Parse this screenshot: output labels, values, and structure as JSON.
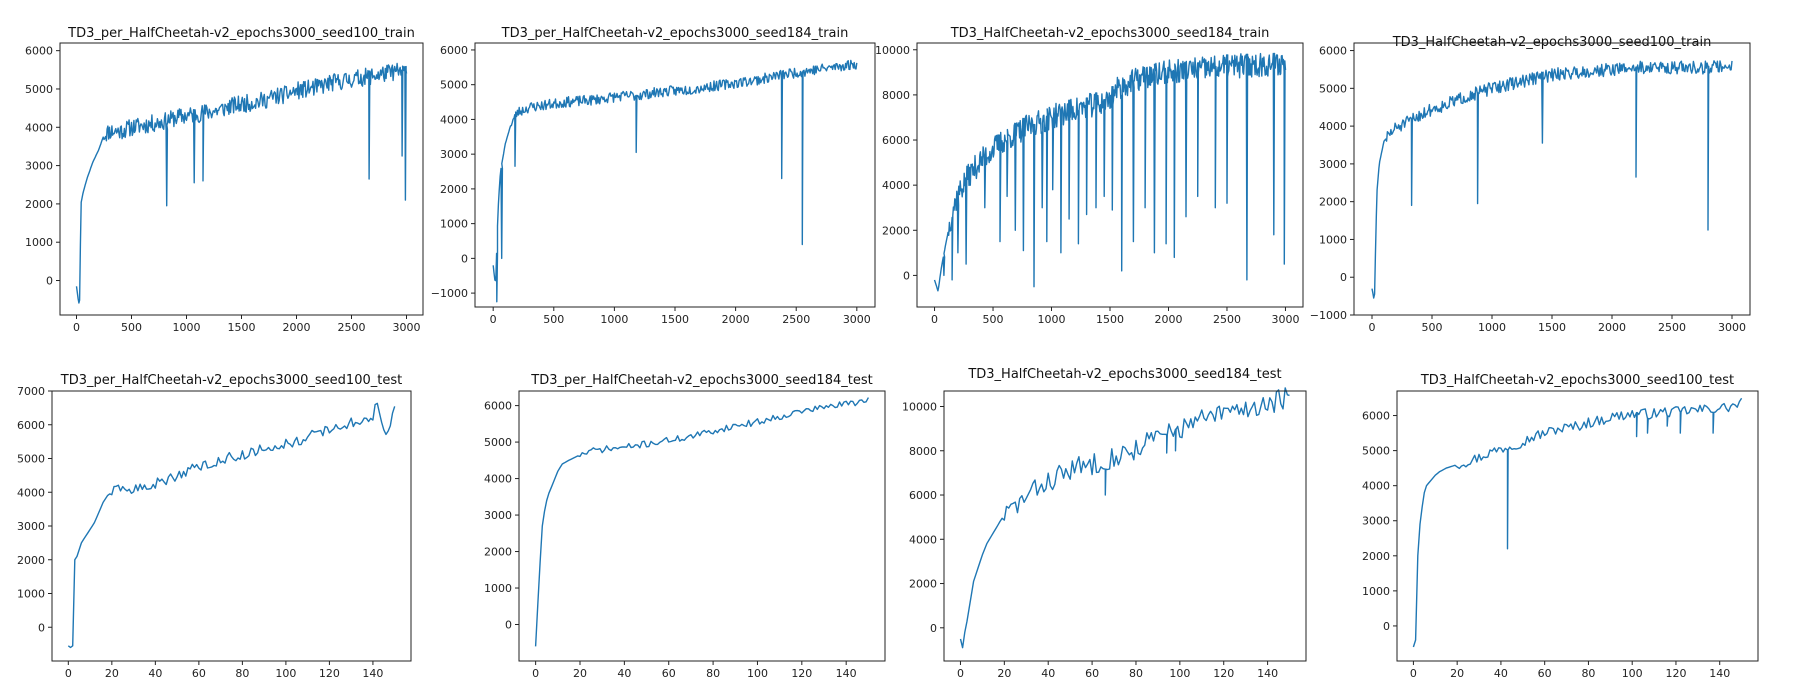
{
  "colors": {
    "series": "#1f77b4",
    "axis": "#222222",
    "background": "#ffffff"
  },
  "chart_data": [
    {
      "type": "line",
      "title": "TD3_per_HalfCheetah-v2_epochs3000_seed100_train",
      "xlim": [
        -150,
        3150
      ],
      "ylim": [
        -900,
        6200
      ],
      "xticks": [
        0,
        500,
        1000,
        1500,
        2000,
        2500,
        3000
      ],
      "yticks": [
        0,
        1000,
        2000,
        3000,
        4000,
        5000,
        6000
      ],
      "curve": {
        "x": [
          0,
          20,
          30,
          40,
          60,
          100,
          150,
          200,
          250,
          300,
          400,
          500,
          600,
          700,
          800,
          900,
          1000,
          1100,
          1200,
          1300,
          1400,
          1500,
          1600,
          1700,
          1800,
          1900,
          2000,
          2100,
          2200,
          2300,
          2400,
          2500,
          2600,
          2700,
          2800,
          2900,
          3000
        ],
        "y": [
          -150,
          -600,
          -500,
          2000,
          2300,
          2700,
          3100,
          3400,
          3800,
          3900,
          3900,
          4000,
          4050,
          4100,
          4150,
          4250,
          4300,
          4350,
          4400,
          4450,
          4550,
          4600,
          4650,
          4700,
          4800,
          4850,
          4950,
          5000,
          5050,
          5150,
          5200,
          5250,
          5300,
          5350,
          5400,
          5450,
          5450
        ]
      },
      "noise": 230,
      "noise_start": 250,
      "seed": 11,
      "points": 420,
      "dips": [
        [
          820,
          1950
        ],
        [
          1070,
          2550
        ],
        [
          1150,
          2600
        ],
        [
          2660,
          2650
        ],
        [
          2960,
          3250
        ],
        [
          2990,
          2100
        ]
      ]
    },
    {
      "type": "line",
      "title": "TD3_per_HalfCheetah-v2_epochs3000_seed184_train",
      "xlim": [
        -150,
        3150
      ],
      "ylim": [
        -1400,
        6200
      ],
      "xticks": [
        0,
        500,
        1000,
        1500,
        2000,
        2500,
        3000
      ],
      "yticks": [
        -1000,
        0,
        1000,
        2000,
        3000,
        4000,
        5000,
        6000
      ],
      "curve": {
        "x": [
          0,
          20,
          40,
          60,
          100,
          150,
          200,
          300,
          400,
          500,
          600,
          800,
          1000,
          1200,
          1400,
          1600,
          1800,
          2000,
          2200,
          2400,
          2600,
          2800,
          3000
        ],
        "y": [
          -200,
          -800,
          1400,
          2500,
          3300,
          3900,
          4200,
          4350,
          4400,
          4450,
          4500,
          4550,
          4650,
          4700,
          4800,
          4850,
          4950,
          5050,
          5150,
          5300,
          5400,
          5500,
          5600
        ]
      },
      "noise": 150,
      "noise_start": 150,
      "seed": 23,
      "points": 420,
      "dips": [
        [
          30,
          -1250
        ],
        [
          70,
          0
        ],
        [
          180,
          2650
        ],
        [
          1180,
          3050
        ],
        [
          2380,
          2300
        ],
        [
          2550,
          400
        ]
      ]
    },
    {
      "type": "line",
      "title": "TD3_HalfCheetah-v2_epochs3000_seed184_train",
      "xlim": [
        -150,
        3150
      ],
      "ylim": [
        -1400,
        10300
      ],
      "xticks": [
        0,
        500,
        1000,
        1500,
        2000,
        2500,
        3000
      ],
      "yticks": [
        0,
        2000,
        4000,
        6000,
        8000,
        10000
      ],
      "curve": {
        "x": [
          0,
          30,
          60,
          100,
          150,
          200,
          300,
          400,
          500,
          600,
          700,
          800,
          900,
          1000,
          1100,
          1200,
          1300,
          1400,
          1500,
          1550,
          1600,
          1700,
          1800,
          1900,
          2000,
          2200,
          2400,
          2600,
          2800,
          3000
        ],
        "y": [
          -200,
          -700,
          400,
          1500,
          2800,
          3600,
          4500,
          5100,
          5600,
          6000,
          6300,
          6600,
          6800,
          7000,
          7200,
          7350,
          7500,
          7600,
          7800,
          8200,
          8400,
          8600,
          8800,
          8900,
          9000,
          9100,
          9200,
          9300,
          9350,
          9400
        ]
      },
      "noise": 550,
      "noise_start": 120,
      "seed": 37,
      "points": 520,
      "dips": [
        [
          80,
          0
        ],
        [
          150,
          -200
        ],
        [
          200,
          1000
        ],
        [
          270,
          500
        ],
        [
          430,
          3000
        ],
        [
          560,
          1500
        ],
        [
          620,
          3500
        ],
        [
          690,
          2000
        ],
        [
          760,
          1100
        ],
        [
          850,
          -500
        ],
        [
          920,
          3000
        ],
        [
          960,
          1500
        ],
        [
          1010,
          3800
        ],
        [
          1080,
          1000
        ],
        [
          1150,
          2500
        ],
        [
          1230,
          1400
        ],
        [
          1300,
          2700
        ],
        [
          1380,
          3000
        ],
        [
          1450,
          3500
        ],
        [
          1520,
          2900
        ],
        [
          1600,
          200
        ],
        [
          1700,
          1500
        ],
        [
          1800,
          3000
        ],
        [
          1880,
          1000
        ],
        [
          1980,
          1400
        ],
        [
          2050,
          800
        ],
        [
          2150,
          2600
        ],
        [
          2250,
          3500
        ],
        [
          2400,
          3000
        ],
        [
          2500,
          3200
        ],
        [
          2670,
          -200
        ],
        [
          2900,
          1800
        ],
        [
          2990,
          500
        ]
      ]
    },
    {
      "type": "line",
      "title": "TD3_HalfCheetah-v2_epochs3000_seed100_train",
      "xlim": [
        -150,
        3150
      ],
      "ylim": [
        -1000,
        6200
      ],
      "xticks": [
        0,
        500,
        1000,
        1500,
        2000,
        2500,
        3000
      ],
      "yticks": [
        -1000,
        0,
        1000,
        2000,
        3000,
        4000,
        5000,
        6000
      ],
      "curve": {
        "x": [
          0,
          20,
          40,
          60,
          100,
          150,
          200,
          300,
          400,
          500,
          600,
          800,
          1000,
          1200,
          1400,
          1600,
          1800,
          2000,
          2200,
          2400,
          2600,
          2800,
          3000
        ],
        "y": [
          -300,
          -650,
          2200,
          3000,
          3600,
          3800,
          3950,
          4100,
          4300,
          4450,
          4550,
          4800,
          5000,
          5150,
          5300,
          5400,
          5450,
          5500,
          5550,
          5550,
          5550,
          5550,
          5600
        ]
      },
      "noise": 170,
      "noise_start": 120,
      "seed": 51,
      "points": 420,
      "dips": [
        [
          330,
          1900
        ],
        [
          880,
          1950
        ],
        [
          1420,
          3550
        ],
        [
          2200,
          2650
        ],
        [
          2800,
          1250
        ]
      ]
    },
    {
      "type": "line",
      "title": "TD3_per_HalfCheetah-v2_epochs3000_seed100_test",
      "xlim": [
        -7.5,
        157.5
      ],
      "ylim": [
        -1000,
        7000
      ],
      "xticks": [
        0,
        20,
        40,
        60,
        80,
        100,
        120,
        140
      ],
      "yticks": [
        0,
        1000,
        2000,
        3000,
        4000,
        5000,
        6000,
        7000
      ],
      "curve": {
        "x": [
          0,
          1,
          2,
          3,
          4,
          5,
          6,
          8,
          10,
          12,
          14,
          16,
          18,
          20,
          25,
          30,
          32,
          35,
          38,
          40,
          45,
          50,
          55,
          60,
          65,
          70,
          75,
          80,
          85,
          90,
          95,
          100,
          105,
          110,
          115,
          120,
          125,
          130,
          135,
          140,
          142,
          144,
          146,
          148,
          150
        ],
        "y": [
          -550,
          -600,
          -550,
          2000,
          2100,
          2300,
          2500,
          2700,
          2900,
          3100,
          3400,
          3700,
          3900,
          4000,
          4100,
          4050,
          4150,
          4100,
          4200,
          4250,
          4350,
          4500,
          4650,
          4750,
          4850,
          4950,
          5050,
          5100,
          5200,
          5300,
          5350,
          5450,
          5500,
          5650,
          5750,
          5850,
          5950,
          6050,
          6150,
          6200,
          6700,
          6000,
          5700,
          6050,
          6500
        ]
      },
      "noise": 150,
      "noise_start": 20,
      "seed": 63,
      "points": 150,
      "dips": []
    },
    {
      "type": "line",
      "title": "TD3_per_HalfCheetah-v2_epochs3000_seed184_test",
      "xlim": [
        -7.5,
        157.5
      ],
      "ylim": [
        -1000,
        6400
      ],
      "xticks": [
        0,
        20,
        40,
        60,
        80,
        100,
        120,
        140
      ],
      "yticks": [
        0,
        1000,
        2000,
        3000,
        4000,
        5000,
        6000
      ],
      "curve": {
        "x": [
          0,
          1,
          2,
          3,
          4,
          5,
          6,
          8,
          10,
          12,
          15,
          20,
          25,
          30,
          40,
          50,
          60,
          70,
          80,
          90,
          100,
          110,
          120,
          130,
          140,
          145,
          150
        ],
        "y": [
          -600,
          600,
          1700,
          2700,
          3100,
          3400,
          3600,
          3900,
          4200,
          4400,
          4500,
          4650,
          4750,
          4800,
          4850,
          4950,
          5050,
          5150,
          5300,
          5450,
          5550,
          5700,
          5850,
          5950,
          6050,
          6100,
          6200
        ]
      },
      "noise": 90,
      "noise_start": 20,
      "seed": 71,
      "points": 150,
      "dips": []
    },
    {
      "type": "line",
      "title": "TD3_HalfCheetah-v2_epochs3000_seed184_test",
      "xlim": [
        -7.5,
        157.5
      ],
      "ylim": [
        -1500,
        10700
      ],
      "xticks": [
        0,
        20,
        40,
        60,
        80,
        100,
        120,
        140
      ],
      "yticks": [
        0,
        2000,
        4000,
        6000,
        8000,
        10000
      ],
      "curve": {
        "x": [
          0,
          1,
          2,
          3,
          4,
          5,
          6,
          8,
          10,
          12,
          15,
          18,
          20,
          25,
          30,
          35,
          40,
          45,
          50,
          55,
          60,
          65,
          70,
          75,
          80,
          85,
          90,
          95,
          100,
          105,
          110,
          115,
          120,
          125,
          130,
          135,
          140,
          145,
          150
        ],
        "y": [
          -500,
          -900,
          -200,
          300,
          900,
          1500,
          2100,
          2700,
          3300,
          3800,
          4300,
          4800,
          5100,
          5500,
          5900,
          6300,
          6600,
          6900,
          7100,
          7300,
          7400,
          7600,
          7700,
          7900,
          8100,
          8400,
          8600,
          8800,
          9000,
          9200,
          9400,
          9500,
          9700,
          9800,
          9900,
          10000,
          10100,
          10300,
          10450
        ]
      },
      "noise": 500,
      "noise_start": 20,
      "seed": 83,
      "points": 150,
      "dips": [
        [
          66,
          6000
        ],
        [
          94,
          7900
        ],
        [
          98,
          8000
        ]
      ]
    },
    {
      "type": "line",
      "title": "TD3_HalfCheetah-v2_epochs3000_seed100_test",
      "xlim": [
        -7.5,
        157.5
      ],
      "ylim": [
        -1000,
        6700
      ],
      "xticks": [
        0,
        20,
        40,
        60,
        80,
        100,
        120,
        140
      ],
      "yticks": [
        0,
        1000,
        2000,
        3000,
        4000,
        5000,
        6000
      ],
      "curve": {
        "x": [
          0,
          1,
          2,
          3,
          4,
          5,
          6,
          8,
          10,
          12,
          15,
          20,
          25,
          30,
          35,
          40,
          45,
          50,
          55,
          60,
          65,
          70,
          75,
          80,
          85,
          90,
          95,
          100,
          105,
          110,
          115,
          120,
          125,
          130,
          135,
          140,
          145,
          150
        ],
        "y": [
          -600,
          -400,
          2000,
          2900,
          3400,
          3800,
          4000,
          4150,
          4300,
          4400,
          4500,
          4600,
          4700,
          4800,
          4950,
          5050,
          5150,
          5250,
          5400,
          5500,
          5600,
          5650,
          5700,
          5800,
          5850,
          5950,
          6000,
          6050,
          6050,
          6050,
          6100,
          6100,
          6150,
          6150,
          6200,
          6200,
          6250,
          6350
        ]
      },
      "noise": 150,
      "noise_start": 20,
      "seed": 97,
      "points": 150,
      "dips": [
        [
          43,
          2200
        ],
        [
          102,
          5400
        ],
        [
          107,
          5500
        ],
        [
          116,
          5700
        ],
        [
          122,
          5500
        ],
        [
          137,
          5500
        ]
      ]
    }
  ]
}
